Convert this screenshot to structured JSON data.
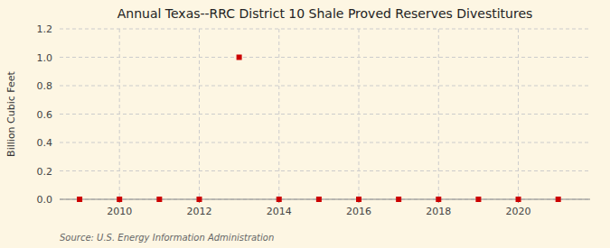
{
  "chart_data": {
    "type": "scatter",
    "title": "Annual Texas--RRC District 10 Shale Proved Reserves Divestitures",
    "ylabel": "Billion Cubic Feet",
    "source": "Source: U.S. Energy Information Administration",
    "x": [
      2009,
      2010,
      2011,
      2012,
      2013,
      2014,
      2015,
      2016,
      2017,
      2018,
      2019,
      2020,
      2021
    ],
    "values": [
      0.0,
      0.0,
      0.0,
      0.0,
      1.0,
      0.0,
      0.0,
      0.0,
      0.0,
      0.0,
      0.0,
      0.0,
      0.0
    ],
    "color": "#cc0000",
    "marker": "square",
    "xlim": [
      2008.5,
      2021.8
    ],
    "ylim": [
      0.0,
      1.2
    ],
    "xticks": [
      2010,
      2012,
      2014,
      2016,
      2018,
      2020
    ],
    "yticks": [
      {
        "value": 0.0,
        "label": "0.0"
      },
      {
        "value": 0.2,
        "label": "0.2"
      },
      {
        "value": 0.4,
        "label": "0.4"
      },
      {
        "value": 0.6,
        "label": "0.6"
      },
      {
        "value": 0.8,
        "label": "0.8"
      },
      {
        "value": 1.0,
        "label": "1.0"
      },
      {
        "value": 1.2,
        "label": "1.2"
      }
    ],
    "grid": true
  }
}
